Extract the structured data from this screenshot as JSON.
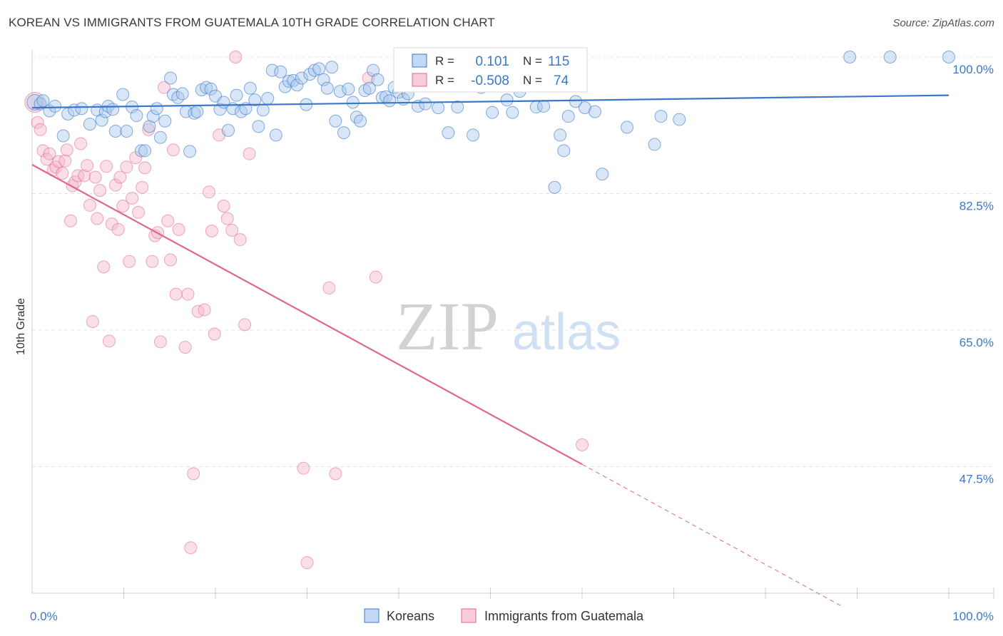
{
  "title": "KOREAN VS IMMIGRANTS FROM GUATEMALA 10TH GRADE CORRELATION CHART",
  "source": "Source: ZipAtlas.com",
  "colors": {
    "blue": "#3b78c8",
    "blue_fill": "#a9c8ee",
    "pink": "#e0668f",
    "pink_fill": "#f5b8cb",
    "tick_text": "#3b78c8",
    "grid": "#e4e4e4"
  },
  "legend": {
    "r_label": "R =",
    "n_label": "N =",
    "rows": [
      {
        "series": "Koreans",
        "r": "0.101",
        "n": "115"
      },
      {
        "series": "Immigrants from Guatemala",
        "r": "-0.508",
        "n": "74"
      }
    ]
  },
  "watermark": {
    "zip": "ZIP",
    "atlas": "atlas"
  },
  "chart_data": {
    "type": "scatter",
    "title": "KOREAN VS IMMIGRANTS FROM GUATEMALA 10TH GRADE CORRELATION CHART",
    "xlabel": "",
    "ylabel": "10th Grade",
    "xlim": [
      0,
      100
    ],
    "ylim": [
      32,
      102
    ],
    "x_tick_labels": {
      "left": "0.0%",
      "right": "100.0%"
    },
    "y_ticks": [
      {
        "value": 100,
        "label": "100.0%"
      },
      {
        "value": 82.5,
        "label": "82.5%"
      },
      {
        "value": 65,
        "label": "65.0%"
      },
      {
        "value": 47.5,
        "label": "47.5%"
      }
    ],
    "grid": true,
    "legend_position": "bottom-center",
    "series": [
      {
        "name": "Koreans",
        "color": "#3b78c8",
        "trend": {
          "x0": 0,
          "y0": 93.5,
          "x1": 100,
          "y1": 95.1,
          "dashed_from": null
        },
        "points": [
          [
            0.3,
            94.2
          ],
          [
            0.9,
            94.0
          ],
          [
            1.2,
            94.4
          ],
          [
            1.9,
            93.1
          ],
          [
            2.5,
            93.7
          ],
          [
            3.4,
            89.9
          ],
          [
            3.9,
            92.7
          ],
          [
            4.6,
            93.2
          ],
          [
            5.4,
            93.4
          ],
          [
            6.3,
            91.4
          ],
          [
            7.1,
            93.2
          ],
          [
            7.6,
            91.9
          ],
          [
            8.0,
            93.0
          ],
          [
            8.3,
            93.7
          ],
          [
            8.8,
            93.3
          ],
          [
            9.1,
            90.5
          ],
          [
            9.9,
            95.2
          ],
          [
            10.3,
            90.5
          ],
          [
            10.9,
            93.6
          ],
          [
            11.4,
            92.5
          ],
          [
            11.9,
            88.0
          ],
          [
            12.3,
            88.0
          ],
          [
            12.8,
            91.1
          ],
          [
            13.2,
            92.4
          ],
          [
            13.6,
            93.4
          ],
          [
            14.0,
            89.7
          ],
          [
            14.5,
            91.8
          ],
          [
            15.1,
            97.3
          ],
          [
            15.4,
            95.2
          ],
          [
            15.9,
            94.8
          ],
          [
            16.4,
            95.3
          ],
          [
            16.8,
            93.0
          ],
          [
            17.2,
            87.9
          ],
          [
            17.7,
            92.8
          ],
          [
            18.0,
            93.0
          ],
          [
            18.5,
            95.8
          ],
          [
            19.0,
            96.1
          ],
          [
            19.5,
            95.9
          ],
          [
            20.0,
            95.0
          ],
          [
            20.5,
            93.3
          ],
          [
            20.9,
            94.2
          ],
          [
            21.4,
            90.6
          ],
          [
            21.9,
            93.4
          ],
          [
            22.3,
            95.1
          ],
          [
            22.8,
            93.0
          ],
          [
            23.3,
            93.4
          ],
          [
            23.8,
            96.0
          ],
          [
            24.3,
            94.5
          ],
          [
            24.7,
            91.1
          ],
          [
            25.2,
            93.2
          ],
          [
            25.7,
            94.7
          ],
          [
            26.2,
            98.3
          ],
          [
            26.6,
            90.0
          ],
          [
            27.1,
            98.1
          ],
          [
            27.6,
            96.2
          ],
          [
            28.0,
            96.9
          ],
          [
            28.5,
            97.0
          ],
          [
            28.9,
            96.4
          ],
          [
            29.4,
            97.3
          ],
          [
            29.9,
            93.9
          ],
          [
            30.3,
            97.8
          ],
          [
            30.8,
            98.3
          ],
          [
            31.3,
            98.5
          ],
          [
            31.8,
            97.1
          ],
          [
            32.2,
            96.0
          ],
          [
            32.7,
            98.7
          ],
          [
            33.1,
            91.8
          ],
          [
            33.6,
            95.6
          ],
          [
            34.0,
            90.3
          ],
          [
            34.5,
            95.9
          ],
          [
            35.0,
            94.2
          ],
          [
            35.4,
            92.3
          ],
          [
            35.8,
            91.8
          ],
          [
            36.3,
            95.7
          ],
          [
            36.8,
            96.0
          ],
          [
            37.2,
            98.3
          ],
          [
            37.7,
            97.1
          ],
          [
            38.2,
            94.8
          ],
          [
            38.6,
            94.9
          ],
          [
            39.0,
            94.4
          ],
          [
            39.5,
            96.1
          ],
          [
            40.0,
            95.5
          ],
          [
            40.5,
            94.6
          ],
          [
            41.0,
            95.3
          ],
          [
            41.3,
            96.8
          ],
          [
            41.7,
            98.2
          ],
          [
            42.1,
            93.7
          ],
          [
            42.9,
            94.0
          ],
          [
            44.3,
            93.5
          ],
          [
            45.4,
            90.3
          ],
          [
            46.0,
            97.7
          ],
          [
            46.4,
            93.6
          ],
          [
            48.1,
            90.0
          ],
          [
            49.0,
            96.1
          ],
          [
            50.2,
            92.9
          ],
          [
            51.8,
            94.5
          ],
          [
            52.4,
            92.9
          ],
          [
            53.2,
            95.6
          ],
          [
            55.0,
            93.6
          ],
          [
            55.8,
            93.7
          ],
          [
            57.0,
            83.3
          ],
          [
            57.6,
            90.0
          ],
          [
            58.0,
            88.0
          ],
          [
            58.5,
            92.4
          ],
          [
            59.3,
            94.3
          ],
          [
            60.3,
            93.5
          ],
          [
            61.4,
            93.0
          ],
          [
            62.2,
            85.0
          ],
          [
            64.9,
            91.0
          ],
          [
            67.9,
            88.8
          ],
          [
            68.6,
            92.4
          ],
          [
            70.6,
            92.0
          ],
          [
            89.2,
            100.0
          ],
          [
            93.6,
            100.0
          ],
          [
            100.0,
            100.0
          ]
        ]
      },
      {
        "name": "Immigrants from Guatemala",
        "color": "#e0668f",
        "trend": {
          "x0": 0,
          "y0": 86.2,
          "x1": 60,
          "y1": 47.8,
          "dashed_from": 60,
          "dashed_x1": 88.5,
          "dashed_y1": 29.5
        },
        "points": [
          [
            0.3,
            94.2
          ],
          [
            0.6,
            91.6
          ],
          [
            0.9,
            90.7
          ],
          [
            1.2,
            88.0
          ],
          [
            1.6,
            86.9
          ],
          [
            1.9,
            87.6
          ],
          [
            2.3,
            85.5
          ],
          [
            2.6,
            85.9
          ],
          [
            2.9,
            86.6
          ],
          [
            3.3,
            85.1
          ],
          [
            3.6,
            86.7
          ],
          [
            3.8,
            88.1
          ],
          [
            4.2,
            79.0
          ],
          [
            4.4,
            83.5
          ],
          [
            4.7,
            84.0
          ],
          [
            5.0,
            84.8
          ],
          [
            5.3,
            88.9
          ],
          [
            5.7,
            84.8
          ],
          [
            6.0,
            86.1
          ],
          [
            6.3,
            81.0
          ],
          [
            6.6,
            66.1
          ],
          [
            6.9,
            84.6
          ],
          [
            7.1,
            79.3
          ],
          [
            7.4,
            82.9
          ],
          [
            7.8,
            73.1
          ],
          [
            8.1,
            86.0
          ],
          [
            8.4,
            63.6
          ],
          [
            8.7,
            78.6
          ],
          [
            9.1,
            83.6
          ],
          [
            9.4,
            77.9
          ],
          [
            9.6,
            84.6
          ],
          [
            9.9,
            80.9
          ],
          [
            10.3,
            85.9
          ],
          [
            10.6,
            73.8
          ],
          [
            10.9,
            81.9
          ],
          [
            11.3,
            87.1
          ],
          [
            11.6,
            80.1
          ],
          [
            12.0,
            83.3
          ],
          [
            12.3,
            85.8
          ],
          [
            12.7,
            90.7
          ],
          [
            13.1,
            73.8
          ],
          [
            13.4,
            77.1
          ],
          [
            13.7,
            77.5
          ],
          [
            14.0,
            63.5
          ],
          [
            14.4,
            96.1
          ],
          [
            14.8,
            79.0
          ],
          [
            15.1,
            74.0
          ],
          [
            15.4,
            88.1
          ],
          [
            15.7,
            69.6
          ],
          [
            16.0,
            77.9
          ],
          [
            16.7,
            62.8
          ],
          [
            17.0,
            69.6
          ],
          [
            17.3,
            37.1
          ],
          [
            17.6,
            46.6
          ],
          [
            18.1,
            67.4
          ],
          [
            18.8,
            67.6
          ],
          [
            19.3,
            82.7
          ],
          [
            19.6,
            77.7
          ],
          [
            19.9,
            64.5
          ],
          [
            20.4,
            90.0
          ],
          [
            20.9,
            80.9
          ],
          [
            21.3,
            79.3
          ],
          [
            21.8,
            77.8
          ],
          [
            22.2,
            100.0
          ],
          [
            22.7,
            76.6
          ],
          [
            23.2,
            65.7
          ],
          [
            23.7,
            87.6
          ],
          [
            29.6,
            47.3
          ],
          [
            30.0,
            35.2
          ],
          [
            32.4,
            70.4
          ],
          [
            33.1,
            46.6
          ],
          [
            36.7,
            97.3
          ],
          [
            37.5,
            71.8
          ],
          [
            60.0,
            50.3
          ]
        ]
      }
    ]
  }
}
